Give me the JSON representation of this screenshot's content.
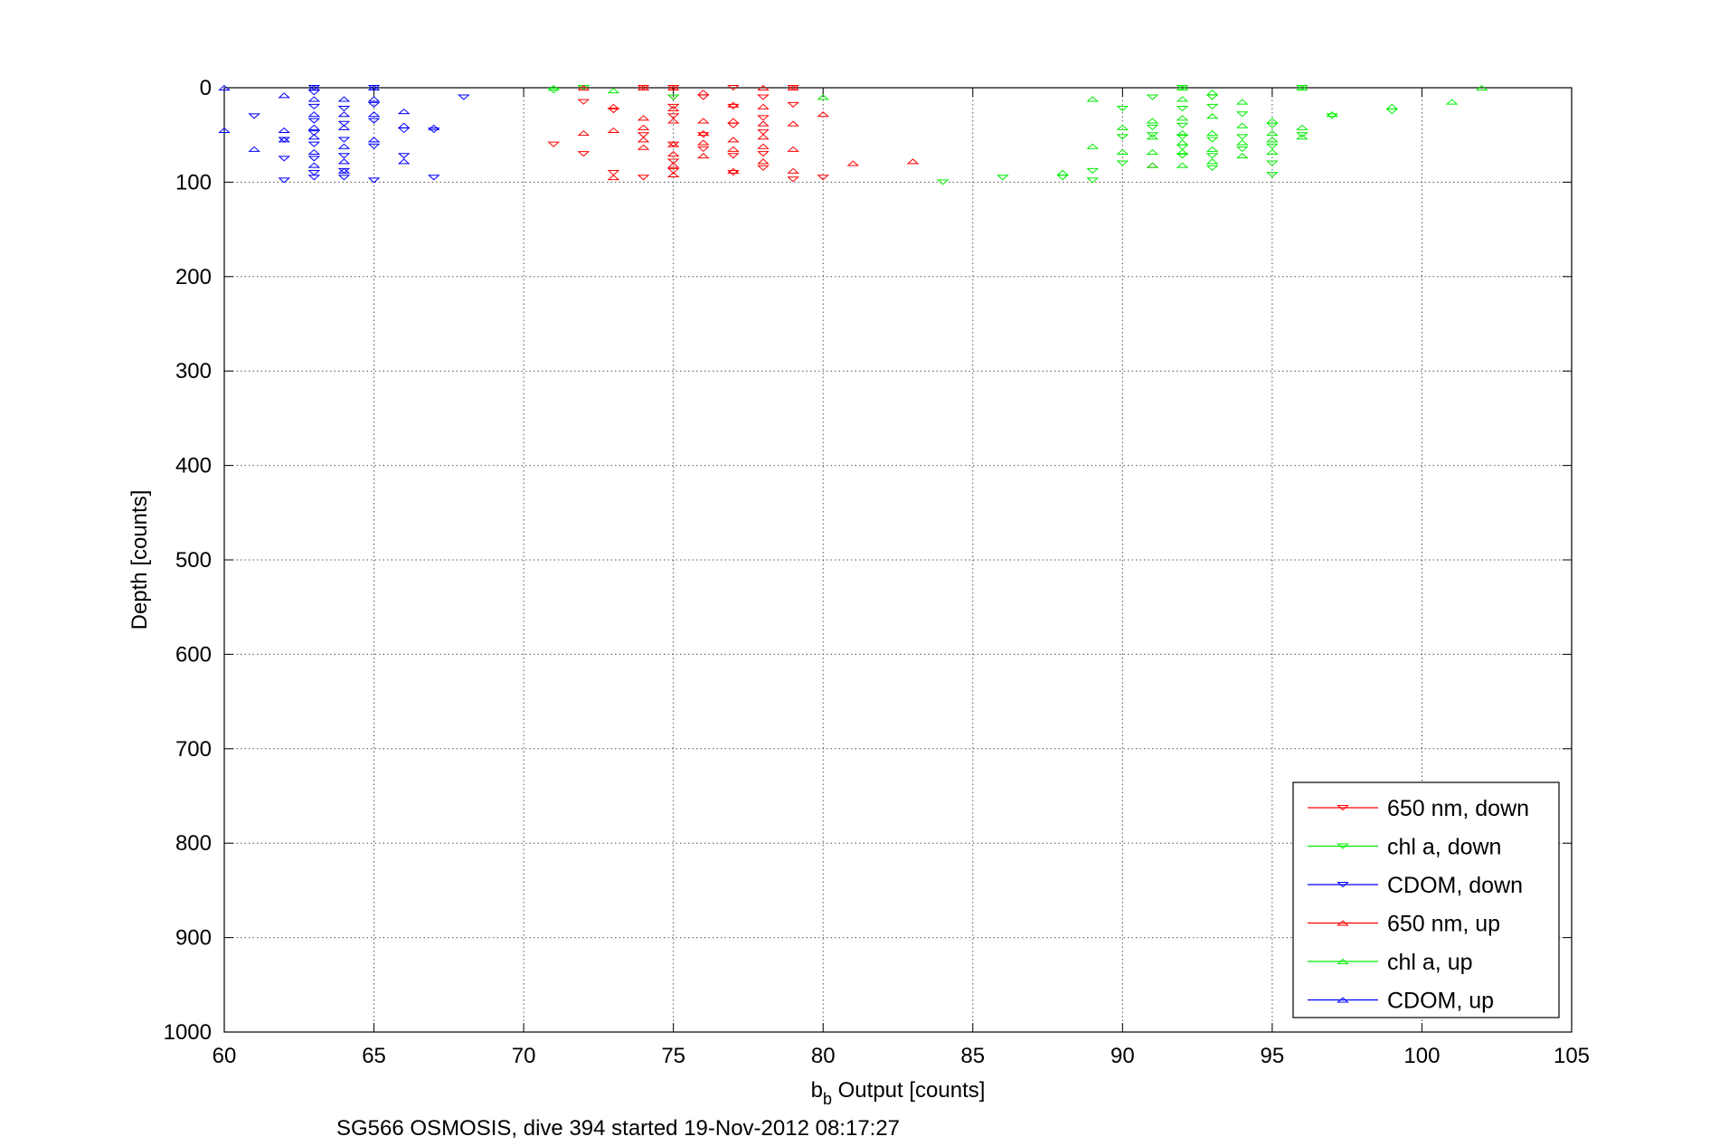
{
  "figure": {
    "caption": "SG566 OSMOSIS, dive 394 started 19-Nov-2012 08:17:27"
  },
  "chart_data": {
    "type": "scatter",
    "xlabel_main": "b",
    "xlabel_sub": "b",
    "xlabel_rest": " Output [counts]",
    "ylabel": "Depth [counts]",
    "xlim": [
      60,
      105
    ],
    "ylim": [
      0,
      1000
    ],
    "y_reversed": true,
    "grid": true,
    "legend_position": "bottom-right",
    "xticks": [
      60,
      65,
      70,
      75,
      80,
      85,
      90,
      95,
      100,
      105
    ],
    "yticks": [
      0,
      100,
      200,
      300,
      400,
      500,
      600,
      700,
      800,
      900,
      1000
    ],
    "series": [
      {
        "name": "650 nm, down",
        "color": "#ff0000",
        "marker": "triangle-down",
        "points": [
          [
            71,
            60
          ],
          [
            72,
            0
          ],
          [
            72,
            15
          ],
          [
            72,
            70
          ],
          [
            73,
            24
          ],
          [
            73,
            90
          ],
          [
            74,
            0
          ],
          [
            74,
            50
          ],
          [
            74,
            95
          ],
          [
            75,
            0
          ],
          [
            75,
            10
          ],
          [
            75,
            20
          ],
          [
            75,
            30
          ],
          [
            75,
            60
          ],
          [
            75,
            78
          ],
          [
            75,
            88
          ],
          [
            76,
            10
          ],
          [
            76,
            50
          ],
          [
            76,
            65
          ],
          [
            77,
            0
          ],
          [
            77,
            20
          ],
          [
            77,
            40
          ],
          [
            77,
            72
          ],
          [
            77,
            90
          ],
          [
            78,
            10
          ],
          [
            78,
            32
          ],
          [
            78,
            47
          ],
          [
            78,
            70
          ],
          [
            78,
            85
          ],
          [
            79,
            0
          ],
          [
            79,
            18
          ],
          [
            79,
            97
          ],
          [
            80,
            95
          ]
        ]
      },
      {
        "name": "chl a, down",
        "color": "#00ee00",
        "marker": "triangle-down",
        "points": [
          [
            71,
            3
          ],
          [
            72,
            0
          ],
          [
            75,
            10
          ],
          [
            84,
            100
          ],
          [
            86,
            95
          ],
          [
            88,
            95
          ],
          [
            89,
            88
          ],
          [
            89,
            98
          ],
          [
            90,
            22
          ],
          [
            90,
            52
          ],
          [
            90,
            80
          ],
          [
            91,
            10
          ],
          [
            91,
            42
          ],
          [
            91,
            50
          ],
          [
            92,
            0
          ],
          [
            92,
            22
          ],
          [
            92,
            40
          ],
          [
            92,
            52
          ],
          [
            92,
            63
          ],
          [
            92,
            72
          ],
          [
            93,
            10
          ],
          [
            93,
            20
          ],
          [
            93,
            55
          ],
          [
            93,
            72
          ],
          [
            93,
            85
          ],
          [
            94,
            28
          ],
          [
            94,
            52
          ],
          [
            94,
            65
          ],
          [
            95,
            40
          ],
          [
            95,
            62
          ],
          [
            95,
            80
          ],
          [
            95,
            92
          ],
          [
            96,
            0
          ],
          [
            96,
            50
          ],
          [
            97,
            30
          ],
          [
            99,
            25
          ]
        ]
      },
      {
        "name": "CDOM, down",
        "color": "#0000ff",
        "marker": "triangle-down",
        "points": [
          [
            61,
            30
          ],
          [
            62,
            55
          ],
          [
            62,
            75
          ],
          [
            62,
            98
          ],
          [
            63,
            0
          ],
          [
            63,
            5
          ],
          [
            63,
            20
          ],
          [
            63,
            35
          ],
          [
            63,
            48
          ],
          [
            63,
            60
          ],
          [
            63,
            75
          ],
          [
            63,
            90
          ],
          [
            63,
            95
          ],
          [
            64,
            22
          ],
          [
            64,
            38
          ],
          [
            64,
            55
          ],
          [
            64,
            72
          ],
          [
            64,
            88
          ],
          [
            64,
            95
          ],
          [
            65,
            0
          ],
          [
            65,
            18
          ],
          [
            65,
            35
          ],
          [
            65,
            62
          ],
          [
            65,
            98
          ],
          [
            66,
            45
          ],
          [
            66,
            72
          ],
          [
            67,
            45
          ],
          [
            67,
            95
          ],
          [
            68,
            10
          ]
        ]
      },
      {
        "name": "650 nm, up",
        "color": "#ff0000",
        "marker": "triangle-up",
        "points": [
          [
            72,
            0
          ],
          [
            72,
            48
          ],
          [
            73,
            20
          ],
          [
            73,
            45
          ],
          [
            73,
            95
          ],
          [
            74,
            0
          ],
          [
            74,
            32
          ],
          [
            74,
            42
          ],
          [
            74,
            55
          ],
          [
            74,
            63
          ],
          [
            75,
            0
          ],
          [
            75,
            22
          ],
          [
            75,
            35
          ],
          [
            75,
            60
          ],
          [
            75,
            70
          ],
          [
            75,
            82
          ],
          [
            75,
            92
          ],
          [
            76,
            5
          ],
          [
            76,
            35
          ],
          [
            76,
            48
          ],
          [
            76,
            58
          ],
          [
            76,
            72
          ],
          [
            77,
            18
          ],
          [
            77,
            35
          ],
          [
            77,
            55
          ],
          [
            77,
            65
          ],
          [
            77,
            88
          ],
          [
            78,
            0
          ],
          [
            78,
            20
          ],
          [
            78,
            38
          ],
          [
            78,
            52
          ],
          [
            78,
            62
          ],
          [
            78,
            78
          ],
          [
            79,
            0
          ],
          [
            79,
            38
          ],
          [
            79,
            65
          ],
          [
            79,
            88
          ],
          [
            80,
            28
          ],
          [
            81,
            80
          ],
          [
            83,
            78
          ],
          [
            91,
            82
          ]
        ]
      },
      {
        "name": "chl a, up",
        "color": "#00ee00",
        "marker": "triangle-up",
        "points": [
          [
            71,
            0
          ],
          [
            73,
            3
          ],
          [
            80,
            10
          ],
          [
            88,
            90
          ],
          [
            89,
            12
          ],
          [
            89,
            62
          ],
          [
            90,
            42
          ],
          [
            90,
            68
          ],
          [
            91,
            35
          ],
          [
            91,
            52
          ],
          [
            91,
            68
          ],
          [
            91,
            82
          ],
          [
            92,
            0
          ],
          [
            92,
            12
          ],
          [
            92,
            32
          ],
          [
            92,
            48
          ],
          [
            92,
            58
          ],
          [
            92,
            68
          ],
          [
            92,
            82
          ],
          [
            93,
            5
          ],
          [
            93,
            30
          ],
          [
            93,
            48
          ],
          [
            93,
            65
          ],
          [
            93,
            78
          ],
          [
            94,
            15
          ],
          [
            94,
            40
          ],
          [
            94,
            58
          ],
          [
            94,
            72
          ],
          [
            95,
            35
          ],
          [
            95,
            48
          ],
          [
            95,
            55
          ],
          [
            95,
            68
          ],
          [
            96,
            0
          ],
          [
            96,
            42
          ],
          [
            96,
            52
          ],
          [
            97,
            28
          ],
          [
            99,
            20
          ],
          [
            101,
            15
          ],
          [
            102,
            0
          ]
        ]
      },
      {
        "name": "CDOM, up",
        "color": "#0000ff",
        "marker": "triangle-up",
        "points": [
          [
            60,
            0
          ],
          [
            60,
            45
          ],
          [
            61,
            65
          ],
          [
            62,
            8
          ],
          [
            62,
            45
          ],
          [
            62,
            55
          ],
          [
            63,
            0
          ],
          [
            63,
            12
          ],
          [
            63,
            28
          ],
          [
            63,
            42
          ],
          [
            63,
            52
          ],
          [
            63,
            68
          ],
          [
            63,
            82
          ],
          [
            64,
            12
          ],
          [
            64,
            28
          ],
          [
            64,
            42
          ],
          [
            64,
            62
          ],
          [
            64,
            78
          ],
          [
            64,
            88
          ],
          [
            65,
            0
          ],
          [
            65,
            12
          ],
          [
            65,
            28
          ],
          [
            65,
            55
          ],
          [
            66,
            25
          ],
          [
            66,
            40
          ],
          [
            66,
            78
          ],
          [
            67,
            42
          ]
        ]
      }
    ]
  }
}
